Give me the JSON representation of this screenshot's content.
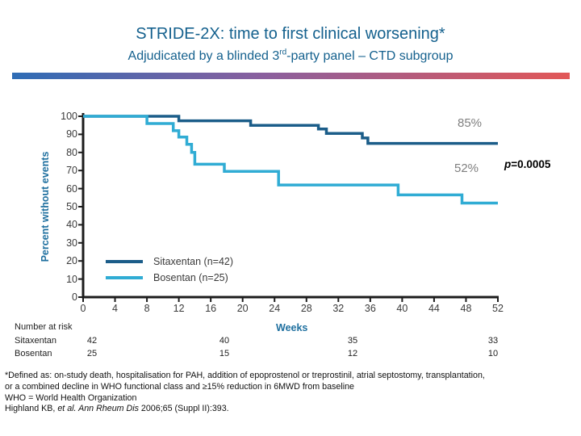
{
  "slide": {
    "title": "STRIDE-2X: time to first clinical worsening*",
    "subtitle_pre": "Adjudicated by a blinded 3",
    "subtitle_sup": "rd",
    "subtitle_post": "-party panel – CTD subgroup"
  },
  "colors": {
    "title_text": "#15618e",
    "axis": "#1c1c1c",
    "accent_blue": "#1e6f9f",
    "pct_label": "#7f7f7f",
    "bar_gradient_left": "#2e6cb5",
    "bar_gradient_mid": "#8a5f9e",
    "bar_gradient_right": "#e25757"
  },
  "chart_data": {
    "type": "line",
    "subtype": "kaplan-meier-step",
    "xlabel": "Weeks",
    "ylabel": "Percent without events",
    "xlim": [
      0,
      52
    ],
    "ylim": [
      0,
      100
    ],
    "grid": false,
    "x_ticks": [
      0,
      4,
      8,
      12,
      16,
      20,
      24,
      28,
      32,
      36,
      40,
      44,
      48,
      52
    ],
    "y_ticks": [
      0,
      10,
      20,
      30,
      40,
      50,
      60,
      70,
      80,
      90,
      100
    ],
    "series": [
      {
        "name": "Sitaxentan (n=42)",
        "color": "#1b5d89",
        "points": [
          [
            0,
            100
          ],
          [
            12,
            97.5
          ],
          [
            21,
            95
          ],
          [
            29.5,
            93
          ],
          [
            30.5,
            90.5
          ],
          [
            35,
            88
          ],
          [
            35.7,
            85
          ],
          [
            52,
            85
          ]
        ]
      },
      {
        "name": "Bosentan (n=25)",
        "color": "#30acd4",
        "points": [
          [
            0,
            100
          ],
          [
            8,
            96
          ],
          [
            11.3,
            92
          ],
          [
            12,
            88.5
          ],
          [
            13,
            84.5
          ],
          [
            13.6,
            80
          ],
          [
            14,
            73.5
          ],
          [
            17.7,
            69.5
          ],
          [
            24.5,
            62
          ],
          [
            39.5,
            56.5
          ],
          [
            47.5,
            52
          ],
          [
            52,
            52
          ]
        ]
      }
    ],
    "annotations": [
      {
        "text": "85%"
      },
      {
        "text": "52%"
      },
      {
        "prefix_italic": "p",
        "text": "=0.0005"
      }
    ],
    "legend_position": "inside-lower-left"
  },
  "risk_table": {
    "heading": "Number at risk",
    "weeks_label": "Weeks",
    "rows": [
      {
        "label": "Sitaxentan",
        "values": [
          "42",
          "40",
          "35",
          "33"
        ]
      },
      {
        "label": "Bosentan",
        "values": [
          "25",
          "15",
          "12",
          "10"
        ]
      }
    ]
  },
  "footnotes": {
    "line1": "*Defined as: on-study death, hospitalisation for PAH, addition of epoprostenol or treprostinil, atrial septostomy, transplantation,",
    "line2": "or a combined decline in WHO functional class and ≥15% reduction in 6MWD from baseline",
    "line3": "WHO = World Health Organization",
    "line4_pre": "Highland KB, ",
    "line4_italic": "et al. Ann Rheum Dis",
    "line4_post": " 2006;65 (Suppl II):393."
  }
}
